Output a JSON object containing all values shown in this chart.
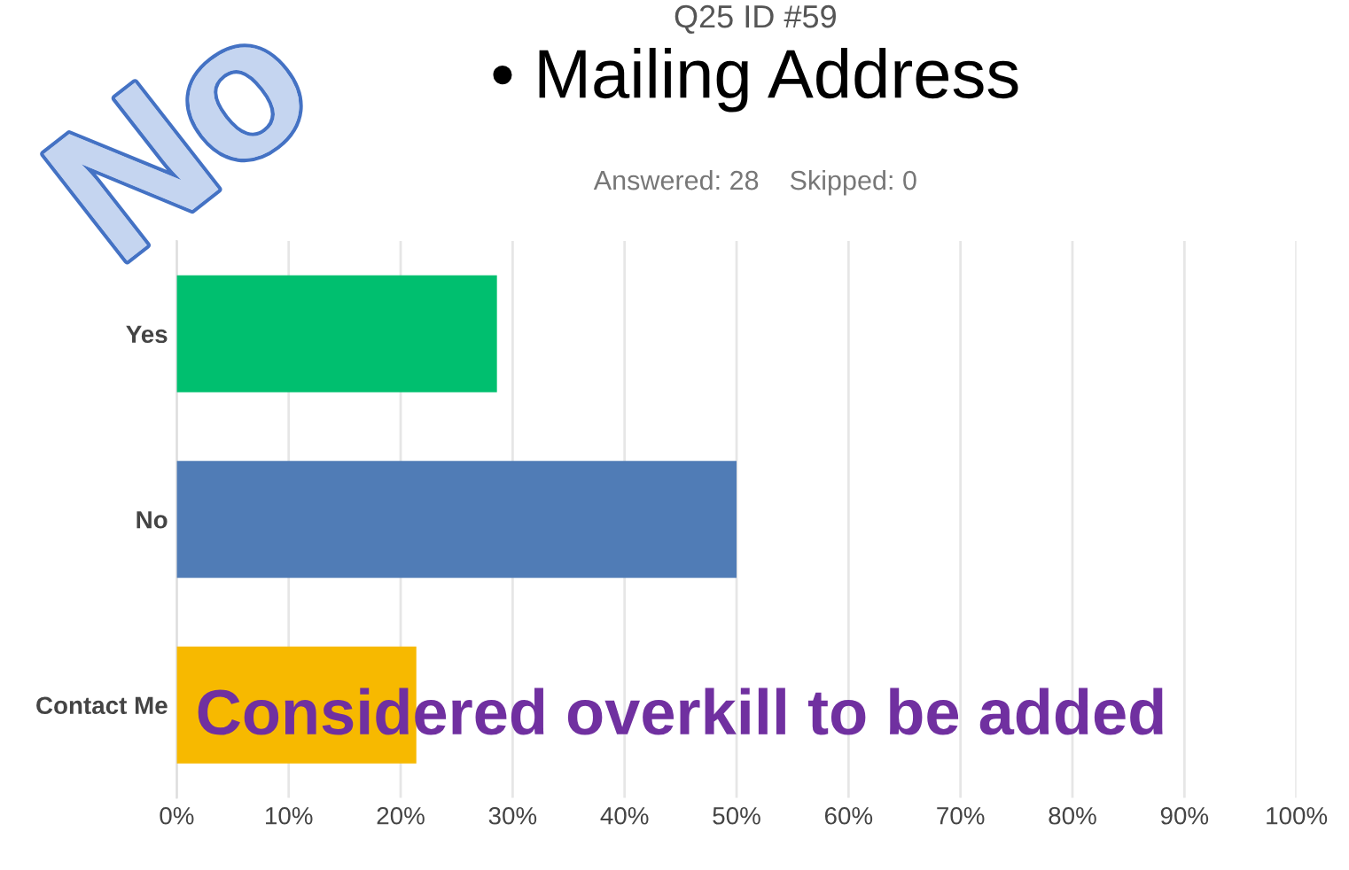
{
  "chart_data": {
    "type": "bar",
    "orientation": "horizontal",
    "title": "• Mailing Address",
    "subtitle": "Q25 ID #59",
    "annotations": [
      "Answered: 28    Skipped: 0",
      "Considered overkill to be added",
      "No"
    ],
    "categories": [
      "Yes",
      "No",
      "Contact Me"
    ],
    "values": [
      28.6,
      50,
      21.4
    ],
    "colors": [
      "#00bf6f",
      "#507cb6",
      "#f7b900"
    ],
    "xlim": [
      0,
      100
    ],
    "xticks": [
      {
        "value": 0,
        "label": "0%"
      },
      {
        "value": 10,
        "label": "10%"
      },
      {
        "value": 20,
        "label": "20%"
      },
      {
        "value": 30,
        "label": "30%"
      },
      {
        "value": 40,
        "label": "40%"
      },
      {
        "value": 50,
        "label": "50%"
      },
      {
        "value": 60,
        "label": "60%"
      },
      {
        "value": 70,
        "label": "70%"
      },
      {
        "value": 80,
        "label": "80%"
      },
      {
        "value": 90,
        "label": "90%"
      },
      {
        "value": 100,
        "label": "100%"
      }
    ],
    "grid": "x",
    "legend": false
  }
}
